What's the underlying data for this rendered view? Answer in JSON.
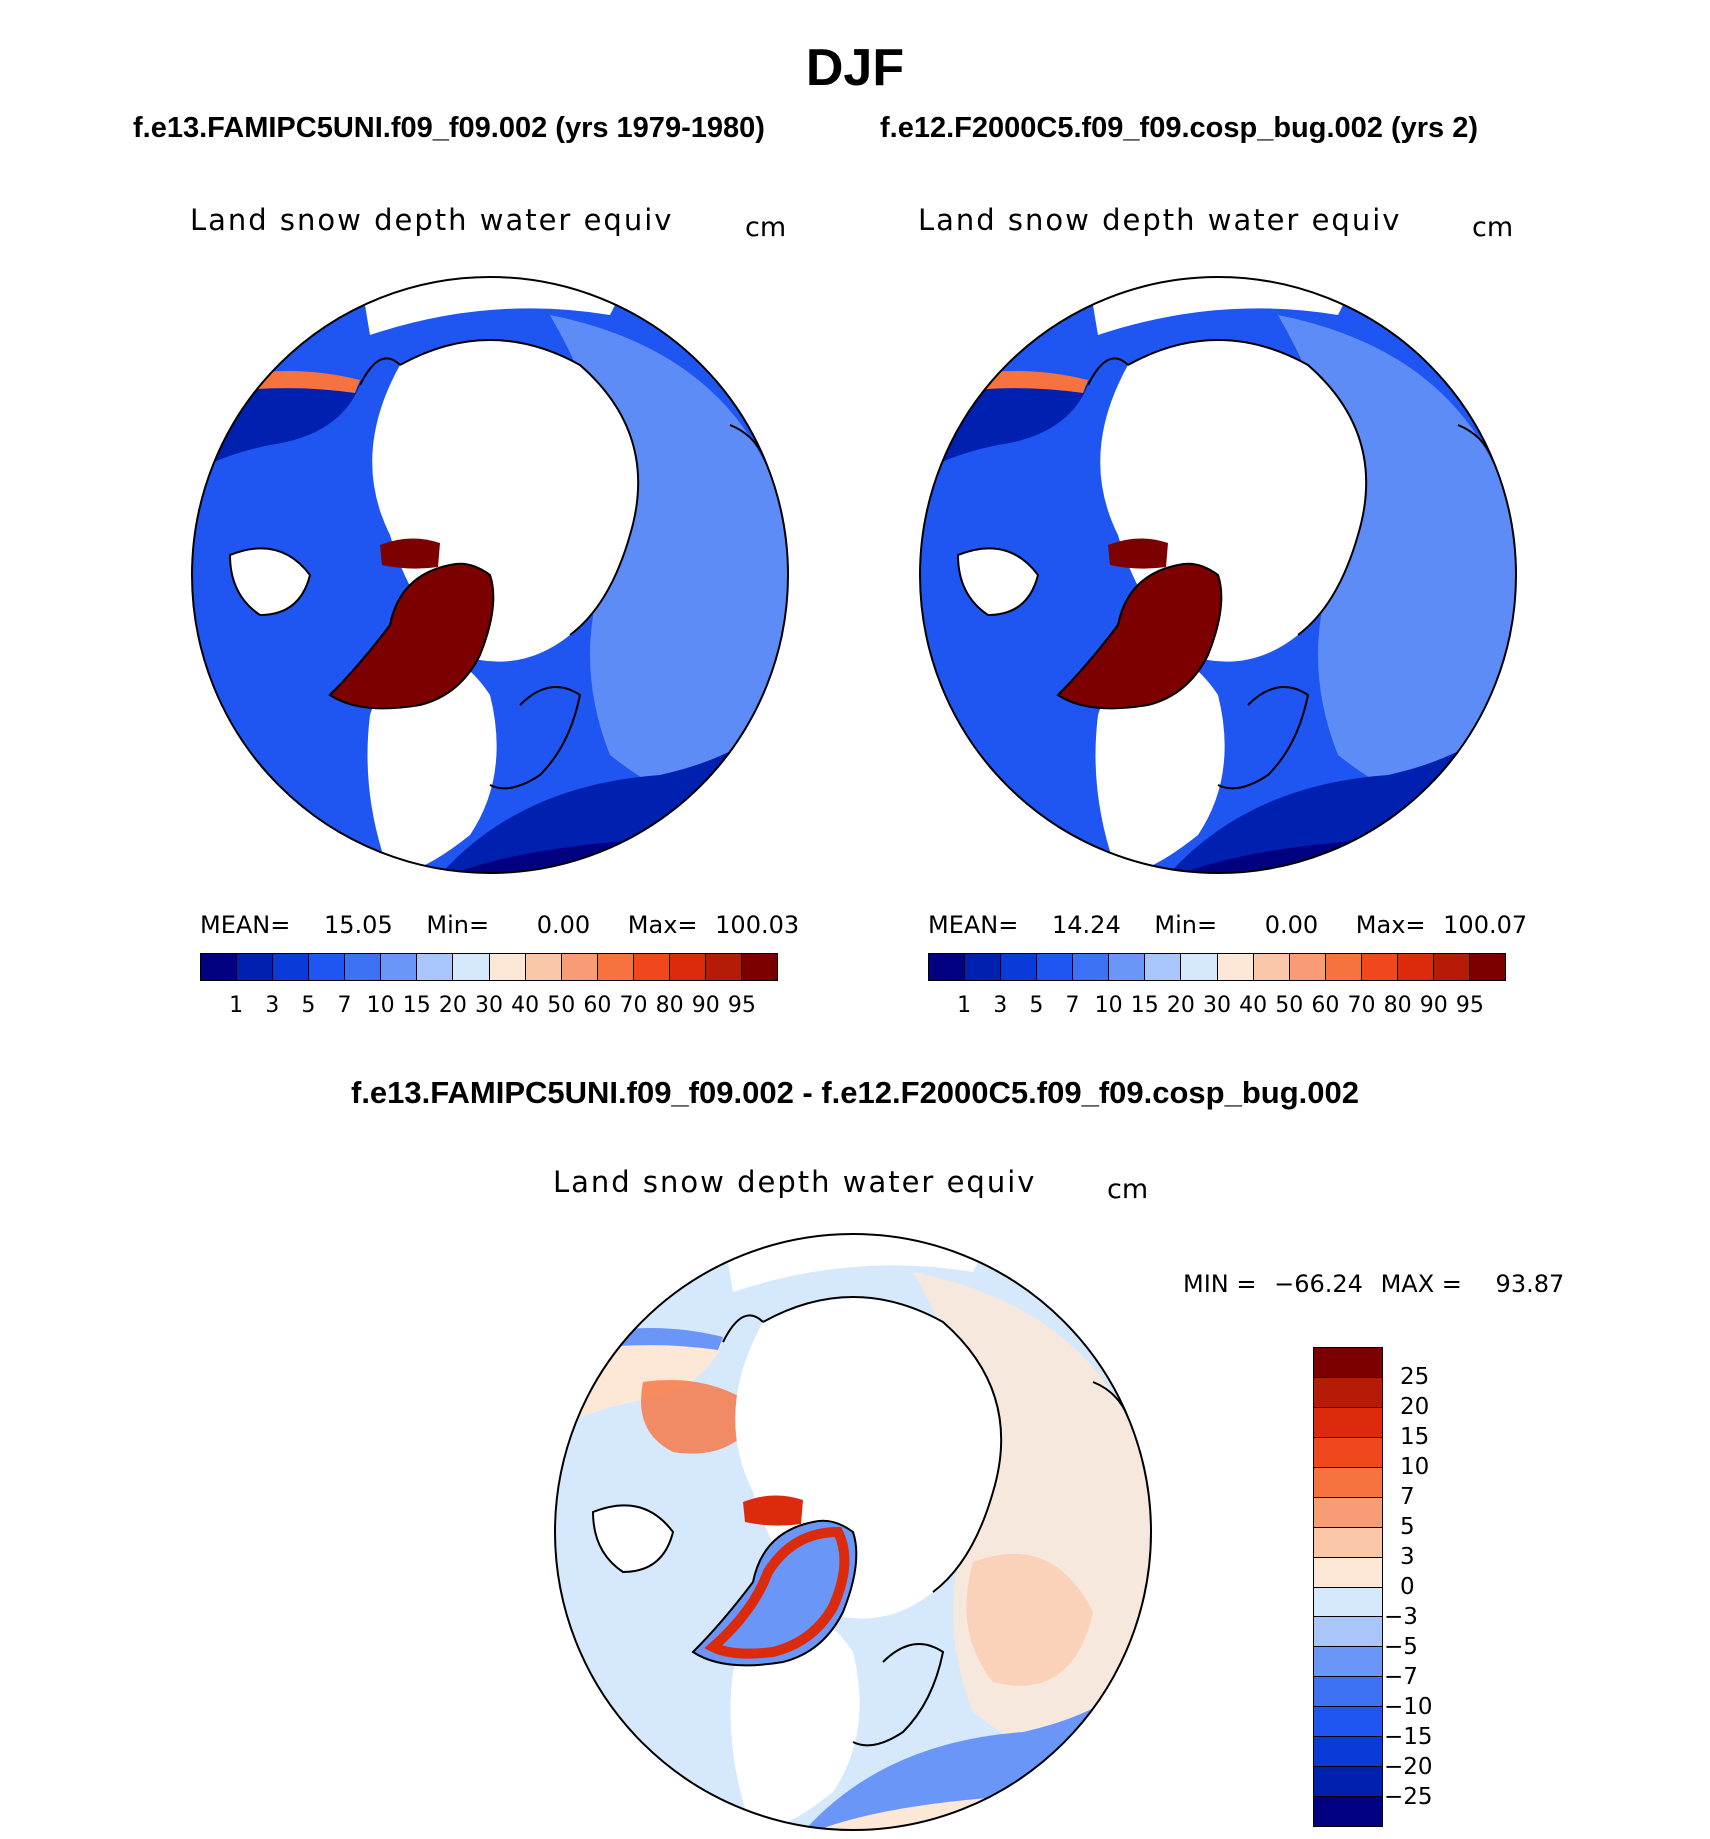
{
  "figure": {
    "title": "DJF",
    "case1_title": "f.e13.FAMIPC5UNI.f09_f09.002 (yrs 1979-1980)",
    "case2_title": "f.e12.F2000C5.f09_f09.cosp_bug.002 (yrs 2)",
    "diff_title": "f.e13.FAMIPC5UNI.f09_f09.002 - f.e12.F2000C5.f09_f09.cosp_bug.002"
  },
  "panels": [
    {
      "variable": "Land snow depth water equiv",
      "units": "cm",
      "mean_label": "MEAN=",
      "mean_value": "15.05",
      "min_label": "Min=",
      "min_value": "0.00",
      "max_label": "Max=",
      "max_value": "100.03"
    },
    {
      "variable": "Land snow depth water equiv",
      "units": "cm",
      "mean_label": "MEAN=",
      "mean_value": "14.24",
      "min_label": "Min=",
      "min_value": "0.00",
      "max_label": "Max=",
      "max_value": "100.07"
    },
    {
      "variable": "Land snow depth water equiv",
      "units": "cm",
      "min_label": "MIN =",
      "min_value": "−66.24",
      "max_label": "MAX =",
      "max_value": "93.87"
    }
  ],
  "colorbar_abs": {
    "colors": [
      "#000080",
      "#0020b0",
      "#0a3ad8",
      "#1f55f0",
      "#3d72f5",
      "#6a97f7",
      "#a8c6fa",
      "#d6e8fc",
      "#fde8d8",
      "#fbc7a9",
      "#f89c76",
      "#f6733f",
      "#f0471d",
      "#db2a0c",
      "#b51b06",
      "#7d0000"
    ],
    "ticks": [
      "1",
      "3",
      "5",
      "7",
      "10",
      "15",
      "20",
      "30",
      "40",
      "50",
      "60",
      "70",
      "80",
      "90",
      "95"
    ]
  },
  "colorbar_diff": {
    "colors": [
      "#7d0000",
      "#b51b06",
      "#db2a0c",
      "#f0471d",
      "#f6733f",
      "#f89c76",
      "#fbc7a9",
      "#fde8d8",
      "#d6e8fc",
      "#a8c6fa",
      "#6a97f7",
      "#3d72f5",
      "#1f55f0",
      "#0a3ad8",
      "#0020b0",
      "#000080"
    ],
    "ticks": [
      "25",
      "20",
      "15",
      "10",
      "7",
      "5",
      "3",
      "0",
      "−3",
      "−5",
      "−7",
      "−10",
      "−15",
      "−20",
      "−25"
    ]
  },
  "map_colors": {
    "land_base": "#1f55f0",
    "land_light": "#6a97f7",
    "land_dark": "#0020b0",
    "land_deep": "#000080",
    "greenland": "#7d0000",
    "warm": "#f6733f",
    "diff_warm": "#fde8d8",
    "diff_cool": "#d6e8fc",
    "diff_blue": "#6a97f7",
    "diff_red": "#db2a0c"
  }
}
